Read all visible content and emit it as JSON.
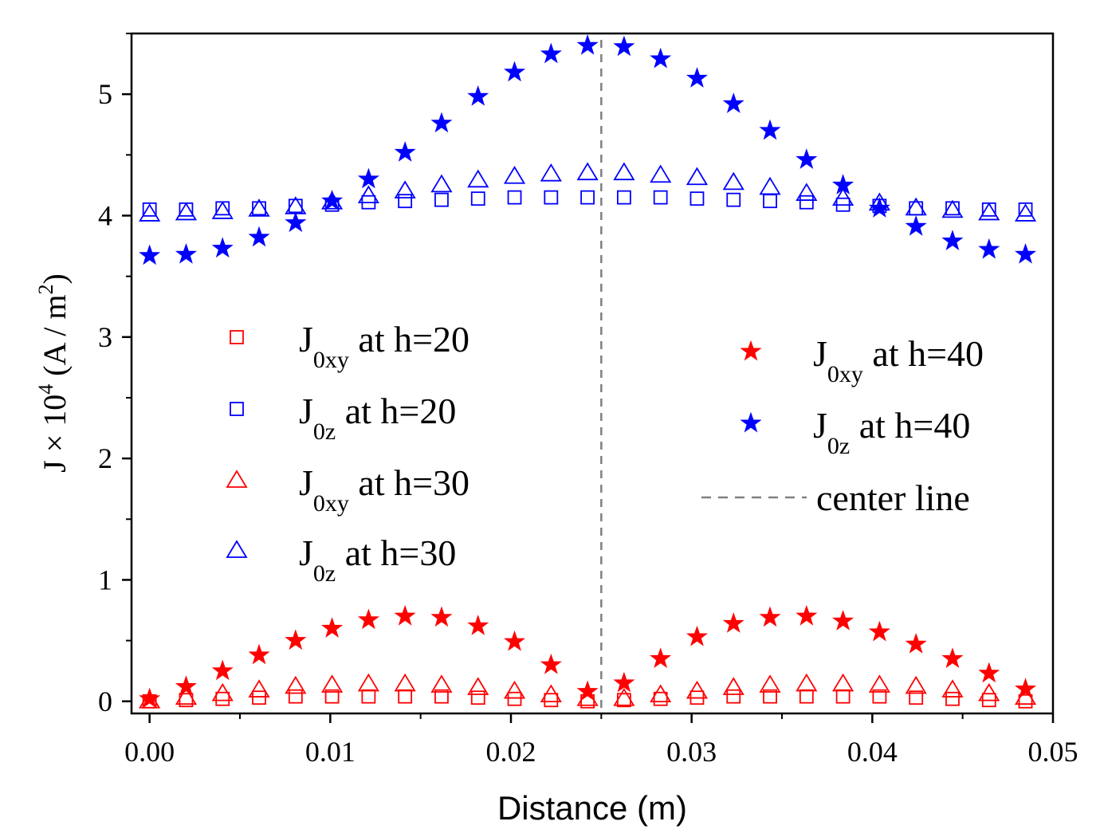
{
  "chart_data": {
    "type": "scatter",
    "xlabel": "Distance (m)",
    "ylabel": {
      "main": "J × 10",
      "exp": "4",
      "unit": " (A / m",
      "unit_exp": "2",
      "close": ")"
    },
    "xlim": [
      -0.001,
      0.05
    ],
    "ylim": [
      -0.1,
      5.5
    ],
    "xticks": [
      0.0,
      0.01,
      0.02,
      0.03,
      0.04,
      0.05
    ],
    "xtick_labels": [
      "0.00",
      "0.01",
      "0.02",
      "0.03",
      "0.04",
      "0.05"
    ],
    "yticks": [
      0,
      1,
      2,
      3,
      4,
      5
    ],
    "ytick_labels": [
      "0",
      "1",
      "2",
      "3",
      "4",
      "5"
    ],
    "center_line": {
      "x": 0.025,
      "label": "center line",
      "color": "#808080"
    },
    "x": [
      0.0,
      0.00202,
      0.00404,
      0.00606,
      0.00808,
      0.0101,
      0.01212,
      0.01414,
      0.01616,
      0.01818,
      0.0202,
      0.02222,
      0.02424,
      0.02626,
      0.02828,
      0.0303,
      0.03232,
      0.03434,
      0.03636,
      0.03838,
      0.0404,
      0.04242,
      0.04444,
      0.04646,
      0.04848
    ],
    "series": [
      {
        "name": "J0xy at h=20",
        "label_main": "J",
        "label_sub": "0xy",
        "label_rest": " at h=20",
        "marker": "square",
        "color": "#ff0000",
        "values": [
          0.0,
          0.01,
          0.02,
          0.03,
          0.04,
          0.04,
          0.04,
          0.04,
          0.04,
          0.03,
          0.02,
          0.01,
          0.0,
          0.01,
          0.02,
          0.03,
          0.04,
          0.04,
          0.04,
          0.04,
          0.04,
          0.03,
          0.02,
          0.01,
          0.0
        ]
      },
      {
        "name": "J0z at h=20",
        "label_main": "J",
        "label_sub": "0z",
        "label_rest": " at h=20",
        "marker": "square",
        "color": "#0000ff",
        "values": [
          4.05,
          4.05,
          4.06,
          4.06,
          4.08,
          4.09,
          4.11,
          4.12,
          4.13,
          4.14,
          4.15,
          4.15,
          4.15,
          4.15,
          4.15,
          4.14,
          4.13,
          4.12,
          4.11,
          4.09,
          4.08,
          4.06,
          4.06,
          4.05,
          4.05
        ]
      },
      {
        "name": "J0xy at h=30",
        "label_main": "J",
        "label_sub": "0xy",
        "label_rest": " at h=30",
        "marker": "triangle",
        "color": "#ff0000",
        "values": [
          0.0,
          0.03,
          0.06,
          0.09,
          0.12,
          0.13,
          0.14,
          0.14,
          0.13,
          0.11,
          0.08,
          0.05,
          0.02,
          0.02,
          0.05,
          0.08,
          0.11,
          0.13,
          0.14,
          0.14,
          0.13,
          0.12,
          0.09,
          0.06,
          0.03
        ]
      },
      {
        "name": "J0z at h=30",
        "label_main": "J",
        "label_sub": "0z",
        "label_rest": " at h=30",
        "marker": "triangle",
        "color": "#0000ff",
        "values": [
          4.01,
          4.02,
          4.03,
          4.05,
          4.07,
          4.11,
          4.16,
          4.2,
          4.25,
          4.29,
          4.32,
          4.34,
          4.35,
          4.35,
          4.33,
          4.31,
          4.27,
          4.23,
          4.18,
          4.14,
          4.1,
          4.06,
          4.04,
          4.02,
          4.01
        ]
      },
      {
        "name": "J0xy at h=40",
        "label_main": "J",
        "label_sub": "0xy",
        "label_rest": " at h=40",
        "marker": "star",
        "color": "#ff0000",
        "values": [
          0.02,
          0.12,
          0.25,
          0.38,
          0.5,
          0.6,
          0.67,
          0.7,
          0.69,
          0.62,
          0.49,
          0.3,
          0.08,
          0.15,
          0.35,
          0.53,
          0.64,
          0.69,
          0.7,
          0.66,
          0.57,
          0.47,
          0.35,
          0.23,
          0.1
        ]
      },
      {
        "name": "J0z at h=40",
        "label_main": "J",
        "label_sub": "0z",
        "label_rest": " at h=40",
        "marker": "star",
        "color": "#0000ff",
        "values": [
          3.67,
          3.68,
          3.73,
          3.82,
          3.94,
          4.12,
          4.3,
          4.52,
          4.76,
          4.98,
          5.18,
          5.33,
          5.4,
          5.39,
          5.29,
          5.13,
          4.92,
          4.7,
          4.46,
          4.25,
          4.06,
          3.91,
          3.79,
          3.72,
          3.68
        ]
      }
    ]
  }
}
